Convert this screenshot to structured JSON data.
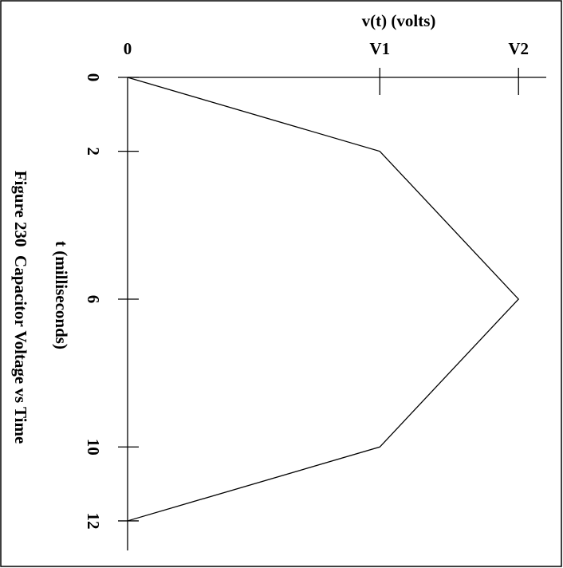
{
  "chart_data": {
    "type": "line",
    "title": "Figure 230  Capacitor Voltage vs Time",
    "x_label": "t (milliseconds)",
    "y_label": "v(t) (volts)",
    "x": [
      0,
      2,
      6,
      10,
      12
    ],
    "values": [
      0,
      1,
      1.55,
      1,
      0
    ],
    "color": "#000000",
    "xlim": [
      0,
      12.8
    ],
    "xticks": [
      0,
      2,
      6,
      10,
      12
    ],
    "ylim": [
      0,
      1.66
    ],
    "yticks": [
      0,
      {
        "value": 1,
        "label": "V1"
      },
      {
        "value": 1.55,
        "label": "V2"
      }
    ]
  }
}
